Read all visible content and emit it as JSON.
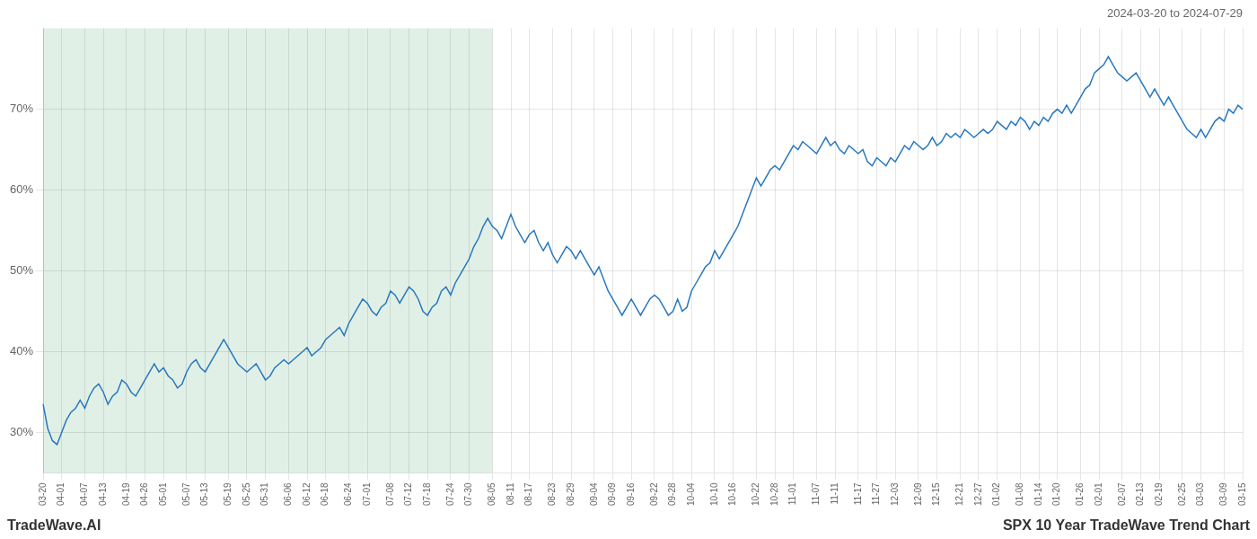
{
  "chart_data": {
    "type": "line",
    "subtitle": "2024-03-20 to 2024-07-29",
    "annotations": [
      "TradeWave.AI",
      "SPX 10 Year TradeWave Trend Chart"
    ],
    "categories": [
      "03-20",
      null,
      null,
      null,
      "04-01",
      null,
      null,
      null,
      null,
      "04-07",
      null,
      null,
      null,
      "04-13",
      null,
      null,
      null,
      null,
      "04-19",
      null,
      null,
      null,
      "04-26",
      null,
      null,
      null,
      "05-01",
      null,
      null,
      null,
      null,
      "05-07",
      null,
      null,
      null,
      "05-13",
      null,
      null,
      null,
      null,
      "05-19",
      null,
      null,
      null,
      "05-25",
      null,
      null,
      null,
      "05-31",
      null,
      null,
      null,
      null,
      "06-06",
      null,
      null,
      null,
      "06-12",
      null,
      null,
      null,
      "06-18",
      null,
      null,
      null,
      null,
      "06-24",
      null,
      null,
      null,
      "07-01",
      null,
      null,
      null,
      null,
      "07-08",
      null,
      null,
      null,
      "07-12",
      null,
      null,
      null,
      "07-18",
      null,
      null,
      null,
      null,
      "07-24",
      null,
      null,
      null,
      "07-30",
      null,
      null,
      null,
      null,
      "08-05",
      null,
      null,
      null,
      "08-11",
      null,
      null,
      null,
      "08-17",
      null,
      null,
      null,
      null,
      "08-23",
      null,
      null,
      null,
      "08-29",
      null,
      null,
      null,
      null,
      "09-04",
      null,
      null,
      null,
      "09-09",
      null,
      null,
      null,
      "09-16",
      null,
      null,
      null,
      null,
      "09-22",
      null,
      null,
      null,
      "09-28",
      null,
      null,
      null,
      "10-04",
      null,
      null,
      null,
      null,
      "10-10",
      null,
      null,
      null,
      "10-16",
      null,
      null,
      null,
      null,
      "10-22",
      null,
      null,
      null,
      "10-28",
      null,
      null,
      null,
      "11-01",
      null,
      null,
      null,
      null,
      "11-07",
      null,
      null,
      null,
      "11-11",
      null,
      null,
      null,
      null,
      "11-17",
      null,
      null,
      null,
      "11-27",
      null,
      null,
      null,
      "12-03",
      null,
      null,
      null,
      null,
      "12-09",
      null,
      null,
      null,
      "12-15",
      null,
      null,
      null,
      null,
      "12-21",
      null,
      null,
      null,
      "12-27",
      null,
      null,
      null,
      "01-02",
      null,
      null,
      null,
      null,
      "01-08",
      null,
      null,
      null,
      "01-14",
      null,
      null,
      null,
      "01-20",
      null,
      null,
      null,
      null,
      "01-26",
      null,
      null,
      null,
      "02-01",
      null,
      null,
      null,
      null,
      "02-07",
      null,
      null,
      null,
      "02-13",
      null,
      null,
      null,
      "02-19",
      null,
      null,
      null,
      null,
      "02-25",
      null,
      null,
      null,
      "03-03",
      null,
      null,
      null,
      null,
      "03-09",
      null,
      null,
      null,
      "03-15"
    ],
    "values": [
      33.5,
      30.5,
      29.0,
      28.5,
      30.0,
      31.5,
      32.5,
      33.0,
      34.0,
      33.0,
      34.5,
      35.5,
      36.0,
      35.0,
      33.5,
      34.5,
      35.0,
      36.5,
      36.0,
      35.0,
      34.5,
      35.5,
      36.5,
      37.5,
      38.5,
      37.5,
      38.0,
      37.0,
      36.5,
      35.5,
      36.0,
      37.5,
      38.5,
      39.0,
      38.0,
      37.5,
      38.5,
      39.5,
      40.5,
      41.5,
      40.5,
      39.5,
      38.5,
      38.0,
      37.5,
      38.0,
      38.5,
      37.5,
      36.5,
      37.0,
      38.0,
      38.5,
      39.0,
      38.5,
      39.0,
      39.5,
      40.0,
      40.5,
      39.5,
      40.0,
      40.5,
      41.5,
      42.0,
      42.5,
      43.0,
      42.0,
      43.5,
      44.5,
      45.5,
      46.5,
      46.0,
      45.0,
      44.5,
      45.5,
      46.0,
      47.5,
      47.0,
      46.0,
      47.0,
      48.0,
      47.5,
      46.5,
      45.0,
      44.5,
      45.5,
      46.0,
      47.5,
      48.0,
      47.0,
      48.5,
      49.5,
      50.5,
      51.5,
      53.0,
      54.0,
      55.5,
      56.5,
      55.5,
      55.0,
      54.0,
      55.5,
      57.0,
      55.5,
      54.5,
      53.5,
      54.5,
      55.0,
      53.5,
      52.5,
      53.5,
      52.0,
      51.0,
      52.0,
      53.0,
      52.5,
      51.5,
      52.5,
      51.5,
      50.5,
      49.5,
      50.5,
      49.0,
      47.5,
      46.5,
      45.5,
      44.5,
      45.5,
      46.5,
      45.5,
      44.5,
      45.5,
      46.5,
      47.0,
      46.5,
      45.5,
      44.5,
      45.0,
      46.5,
      45.0,
      45.5,
      47.5,
      48.5,
      49.5,
      50.5,
      51.0,
      52.5,
      51.5,
      52.5,
      53.5,
      54.5,
      55.5,
      57.0,
      58.5,
      60.0,
      61.5,
      60.5,
      61.5,
      62.5,
      63.0,
      62.5,
      63.5,
      64.5,
      65.5,
      65.0,
      66.0,
      65.5,
      65.0,
      64.5,
      65.5,
      66.5,
      65.5,
      66.0,
      65.0,
      64.5,
      65.5,
      65.0,
      64.5,
      65.0,
      63.5,
      63.0,
      64.0,
      63.5,
      63.0,
      64.0,
      63.5,
      64.5,
      65.5,
      65.0,
      66.0,
      65.5,
      65.0,
      65.5,
      66.5,
      65.5,
      66.0,
      67.0,
      66.5,
      67.0,
      66.5,
      67.5,
      67.0,
      66.5,
      67.0,
      67.5,
      67.0,
      67.5,
      68.5,
      68.0,
      67.5,
      68.5,
      68.0,
      69.0,
      68.5,
      67.5,
      68.5,
      68.0,
      69.0,
      68.5,
      69.5,
      70.0,
      69.5,
      70.5,
      69.5,
      70.5,
      71.5,
      72.5,
      73.0,
      74.5,
      75.0,
      75.5,
      76.5,
      75.5,
      74.5,
      74.0,
      73.5,
      74.0,
      74.5,
      73.5,
      72.5,
      71.5,
      72.5,
      71.5,
      70.5,
      71.5,
      70.5,
      69.5,
      68.5,
      67.5,
      67.0,
      66.5,
      67.5,
      66.5,
      67.5,
      68.5,
      69.0,
      68.5,
      70.0,
      69.5,
      70.5,
      70.0
    ],
    "color": "#2878bd",
    "shaded_range": {
      "start": "03-20",
      "end": "08-05",
      "color": "#d4eadb"
    },
    "ylim": [
      25,
      80
    ],
    "yticks": [
      {
        "value": 30,
        "label": "30%"
      },
      {
        "value": 40,
        "label": "40%"
      },
      {
        "value": 50,
        "label": "50%"
      },
      {
        "value": 60,
        "label": "60%"
      },
      {
        "value": 70,
        "label": "70%"
      }
    ],
    "grid": true
  }
}
